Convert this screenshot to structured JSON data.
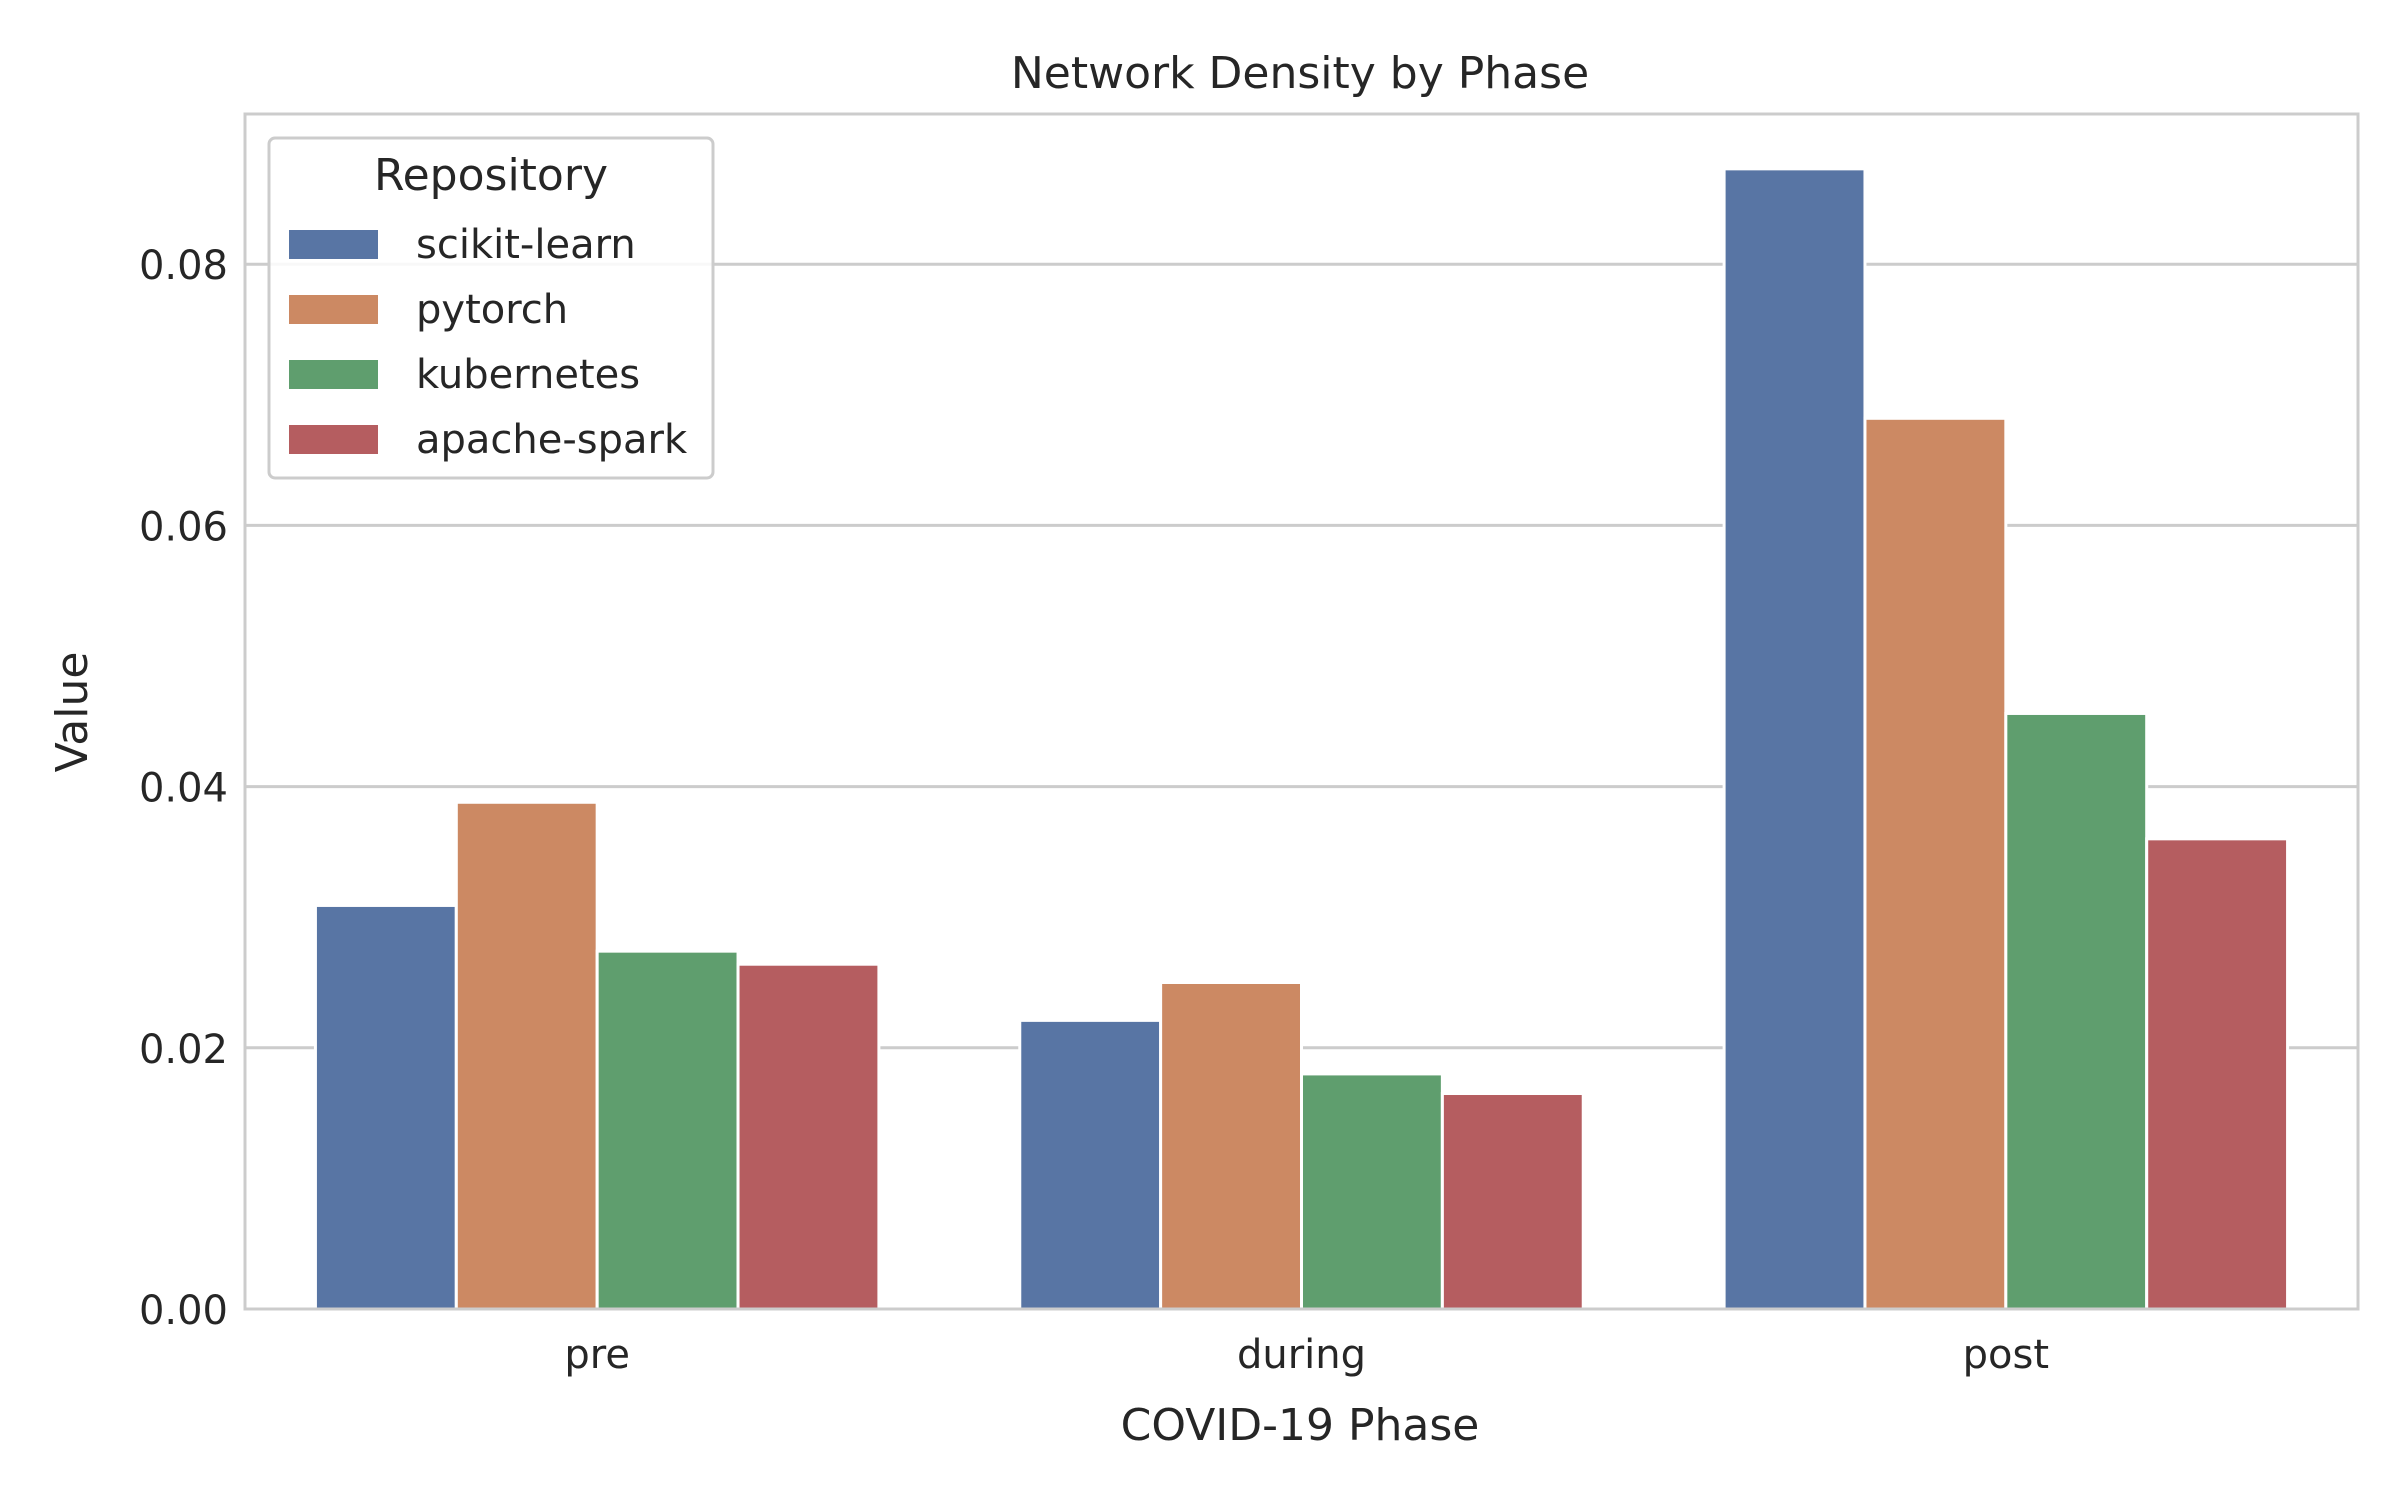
{
  "chart_data": {
    "type": "bar",
    "title": "Network Density by Phase",
    "xlabel": "COVID-19 Phase",
    "ylabel": "Value",
    "categories": [
      "pre",
      "during",
      "post"
    ],
    "ylim": [
      0,
      0.0915
    ],
    "yticks": [
      0.0,
      0.02,
      0.04,
      0.06,
      0.08
    ],
    "ytick_labels": [
      "0.00",
      "0.02",
      "0.04",
      "0.06",
      "0.08"
    ],
    "grid": true,
    "legend": {
      "title": "Repository",
      "placement": "top-left"
    },
    "series": [
      {
        "name": "scikit-learn",
        "color": "#5875a4",
        "values": [
          0.0309,
          0.0221,
          0.0873
        ]
      },
      {
        "name": "pytorch",
        "color": "#cc8963",
        "values": [
          0.0388,
          0.025,
          0.0682
        ]
      },
      {
        "name": "kubernetes",
        "color": "#5f9e6e",
        "values": [
          0.0274,
          0.018,
          0.0456
        ]
      },
      {
        "name": "apache-spark",
        "color": "#b55d60",
        "values": [
          0.0264,
          0.0165,
          0.036
        ]
      }
    ]
  }
}
